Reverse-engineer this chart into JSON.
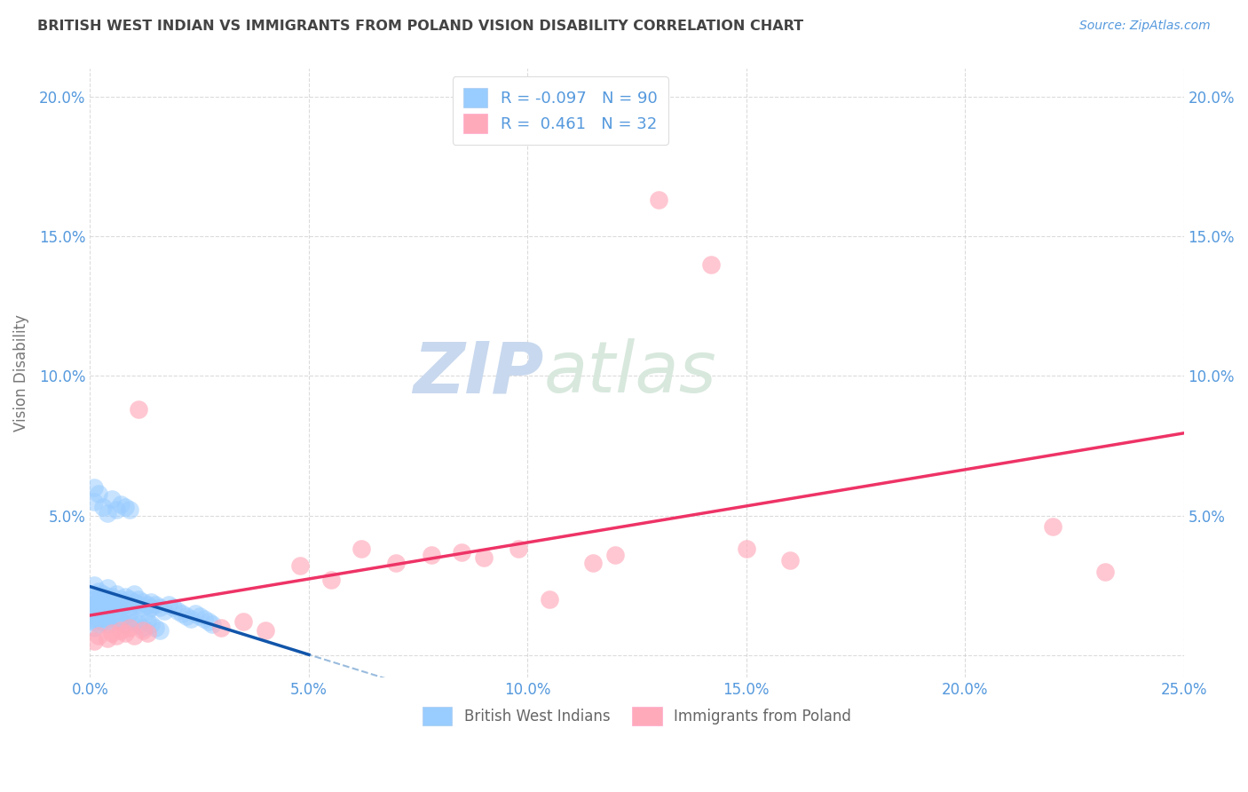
{
  "title": "BRITISH WEST INDIAN VS IMMIGRANTS FROM POLAND VISION DISABILITY CORRELATION CHART",
  "source_text": "Source: ZipAtlas.com",
  "ylabel": "Vision Disability",
  "xlim": [
    0.0,
    0.25
  ],
  "ylim": [
    -0.008,
    0.21
  ],
  "xtick_vals": [
    0.0,
    0.05,
    0.1,
    0.15,
    0.2,
    0.25
  ],
  "ytick_vals": [
    0.0,
    0.05,
    0.1,
    0.15,
    0.2
  ],
  "legend_R1": "-0.097",
  "legend_N1": "90",
  "legend_R2": "0.461",
  "legend_N2": "32",
  "blue_scatter_color": "#99ccff",
  "pink_scatter_color": "#ffaabb",
  "blue_line_color": "#1155aa",
  "pink_line_color": "#ee3366",
  "blue_dash_color": "#99bbdd",
  "pink_dash_color": "#ffbbcc",
  "title_color": "#444444",
  "axis_tick_color": "#5599dd",
  "grid_color": "#cccccc",
  "watermark_color_zip": "#c8d8ee",
  "watermark_color_atlas": "#d8e8dd",
  "background_color": "#ffffff",
  "series1_label": "British West Indians",
  "series2_label": "Immigrants from Poland",
  "blue_x": [
    0.001,
    0.001,
    0.001,
    0.001,
    0.001,
    0.001,
    0.001,
    0.002,
    0.002,
    0.002,
    0.002,
    0.002,
    0.002,
    0.003,
    0.003,
    0.003,
    0.003,
    0.003,
    0.004,
    0.004,
    0.004,
    0.004,
    0.005,
    0.005,
    0.005,
    0.006,
    0.006,
    0.006,
    0.007,
    0.007,
    0.007,
    0.008,
    0.008,
    0.009,
    0.009,
    0.009,
    0.01,
    0.01,
    0.011,
    0.011,
    0.012,
    0.012,
    0.013,
    0.013,
    0.014,
    0.014,
    0.015,
    0.016,
    0.017,
    0.018,
    0.019,
    0.02,
    0.021,
    0.022,
    0.023,
    0.024,
    0.025,
    0.026,
    0.027,
    0.028,
    0.001,
    0.001,
    0.002,
    0.002,
    0.003,
    0.003,
    0.004,
    0.004,
    0.005,
    0.006,
    0.007,
    0.008,
    0.009,
    0.01,
    0.011,
    0.012,
    0.013,
    0.014,
    0.015,
    0.016,
    0.001,
    0.001,
    0.002,
    0.003,
    0.004,
    0.005,
    0.006,
    0.007,
    0.008,
    0.009
  ],
  "blue_y": [
    0.02,
    0.018,
    0.022,
    0.015,
    0.025,
    0.017,
    0.013,
    0.021,
    0.019,
    0.023,
    0.016,
    0.014,
    0.018,
    0.02,
    0.017,
    0.022,
    0.015,
    0.019,
    0.021,
    0.018,
    0.016,
    0.024,
    0.019,
    0.017,
    0.021,
    0.018,
    0.022,
    0.016,
    0.02,
    0.017,
    0.019,
    0.021,
    0.018,
    0.02,
    0.017,
    0.015,
    0.019,
    0.022,
    0.018,
    0.02,
    0.017,
    0.019,
    0.018,
    0.016,
    0.019,
    0.017,
    0.018,
    0.017,
    0.016,
    0.018,
    0.017,
    0.016,
    0.015,
    0.014,
    0.013,
    0.015,
    0.014,
    0.013,
    0.012,
    0.011,
    0.012,
    0.01,
    0.013,
    0.011,
    0.014,
    0.012,
    0.013,
    0.011,
    0.012,
    0.013,
    0.012,
    0.011,
    0.013,
    0.012,
    0.011,
    0.01,
    0.012,
    0.011,
    0.01,
    0.009,
    0.06,
    0.055,
    0.058,
    0.053,
    0.051,
    0.056,
    0.052,
    0.054,
    0.053,
    0.052
  ],
  "pink_x": [
    0.001,
    0.002,
    0.004,
    0.005,
    0.006,
    0.007,
    0.008,
    0.009,
    0.01,
    0.011,
    0.012,
    0.013,
    0.03,
    0.035,
    0.04,
    0.048,
    0.055,
    0.062,
    0.07,
    0.078,
    0.085,
    0.09,
    0.098,
    0.105,
    0.115,
    0.12,
    0.13,
    0.142,
    0.15,
    0.16,
    0.22,
    0.232
  ],
  "pink_y": [
    0.005,
    0.007,
    0.006,
    0.008,
    0.007,
    0.009,
    0.008,
    0.01,
    0.007,
    0.088,
    0.009,
    0.008,
    0.01,
    0.012,
    0.009,
    0.032,
    0.027,
    0.038,
    0.033,
    0.036,
    0.037,
    0.035,
    0.038,
    0.02,
    0.033,
    0.036,
    0.163,
    0.14,
    0.038,
    0.034,
    0.046,
    0.03
  ]
}
